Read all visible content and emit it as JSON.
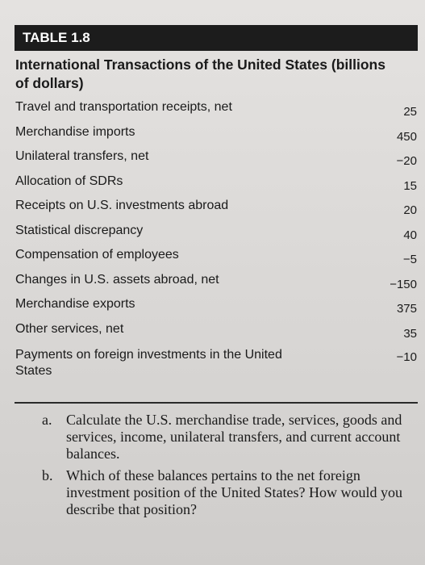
{
  "table": {
    "label": "TABLE 1.8",
    "title": "International Transactions of the United States (billions of dollars)",
    "rows": [
      {
        "label": "Travel and transportation receipts, net",
        "value": "25"
      },
      {
        "label": "Merchandise imports",
        "value": "450"
      },
      {
        "label": "Unilateral transfers, net",
        "value": "−20"
      },
      {
        "label": "Allocation of SDRs",
        "value": "15"
      },
      {
        "label": "Receipts on U.S. investments abroad",
        "value": "20"
      },
      {
        "label": "Statistical discrepancy",
        "value": "40"
      },
      {
        "label": "Compensation of employees",
        "value": "−5"
      },
      {
        "label": "Changes in U.S. assets abroad, net",
        "value": "−150"
      },
      {
        "label": "Merchandise exports",
        "value": "375"
      },
      {
        "label": "Other services, net",
        "value": "35"
      },
      {
        "label": "Payments on foreign investments in the United States",
        "value": "−10"
      }
    ]
  },
  "questions": [
    {
      "letter": "a.",
      "text": "Calculate the U.S. merchandise trade, services, goods and services, income, unilateral transfers, and current account balances."
    },
    {
      "letter": "b.",
      "text": "Which of these balances pertains to the net foreign investment position of the United States? How would you describe that position?"
    }
  ]
}
